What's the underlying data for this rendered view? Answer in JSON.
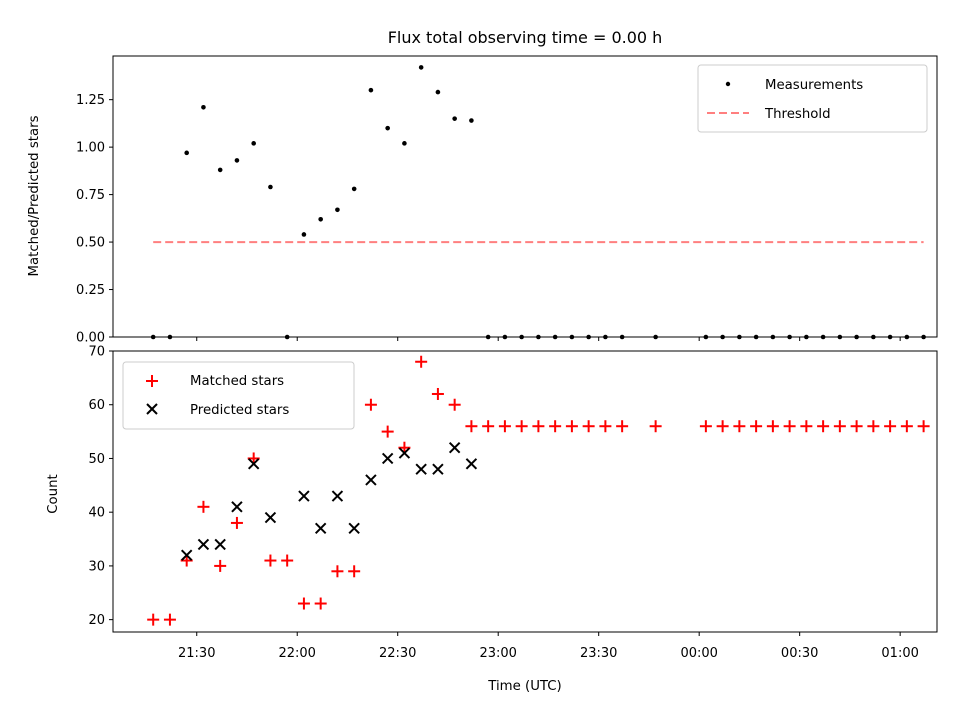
{
  "chart_data": [
    {
      "type": "scatter",
      "title": "Flux total observing time = 0.00 h",
      "xlabel": "",
      "ylabel": "Matched/Predicted stars",
      "ylim": [
        0,
        1.48
      ],
      "yticks": [
        "0.00",
        "0.25",
        "0.50",
        "0.75",
        "1.00",
        "1.25"
      ],
      "x_format": "HH:MM",
      "legend": {
        "position": "top-right",
        "entries": [
          "Measurements",
          "Threshold"
        ]
      },
      "grid": false,
      "series": [
        {
          "name": "Measurements",
          "marker": "dot",
          "color": "#000000",
          "points": [
            [
              "21:17",
              0.0
            ],
            [
              "21:22",
              0.0
            ],
            [
              "21:27",
              0.97
            ],
            [
              "21:32",
              1.21
            ],
            [
              "21:37",
              0.88
            ],
            [
              "21:42",
              0.93
            ],
            [
              "21:47",
              1.02
            ],
            [
              "21:52",
              0.79
            ],
            [
              "21:57",
              0.0
            ],
            [
              "22:02",
              0.54
            ],
            [
              "22:07",
              0.62
            ],
            [
              "22:12",
              0.67
            ],
            [
              "22:17",
              0.78
            ],
            [
              "22:22",
              1.3
            ],
            [
              "22:27",
              1.1
            ],
            [
              "22:32",
              1.02
            ],
            [
              "22:37",
              1.42
            ],
            [
              "22:42",
              1.29
            ],
            [
              "22:47",
              1.15
            ],
            [
              "22:52",
              1.14
            ],
            [
              "22:57",
              0.0
            ],
            [
              "23:02",
              0.0
            ],
            [
              "23:07",
              0.0
            ],
            [
              "23:12",
              0.0
            ],
            [
              "23:17",
              0.0
            ],
            [
              "23:22",
              0.0
            ],
            [
              "23:27",
              0.0
            ],
            [
              "23:32",
              0.0
            ],
            [
              "23:37",
              0.0
            ],
            [
              "23:47",
              0.0
            ],
            [
              "00:02",
              0.0
            ],
            [
              "00:07",
              0.0
            ],
            [
              "00:12",
              0.0
            ],
            [
              "00:17",
              0.0
            ],
            [
              "00:22",
              0.0
            ],
            [
              "00:27",
              0.0
            ],
            [
              "00:32",
              0.0
            ],
            [
              "00:37",
              0.0
            ],
            [
              "00:42",
              0.0
            ],
            [
              "00:47",
              0.0
            ],
            [
              "00:52",
              0.0
            ],
            [
              "00:57",
              0.0
            ],
            [
              "01:02",
              0.0
            ],
            [
              "01:07",
              0.0
            ]
          ]
        },
        {
          "name": "Threshold",
          "marker": "dashed-line",
          "color": "#ff7f7f",
          "points": [
            [
              "21:17",
              0.5
            ],
            [
              "01:07",
              0.5
            ]
          ]
        }
      ]
    },
    {
      "type": "scatter",
      "title": "",
      "xlabel": "Time (UTC)",
      "ylabel": "Count",
      "ylim": [
        17.7,
        70
      ],
      "yticks": [
        "20",
        "30",
        "40",
        "50",
        "60",
        "70"
      ],
      "xticks": [
        "21:30",
        "22:00",
        "22:30",
        "23:00",
        "23:30",
        "00:00",
        "00:30",
        "01:00"
      ],
      "x_format": "HH:MM",
      "legend": {
        "position": "top-left",
        "entries": [
          "Matched stars",
          "Predicted stars"
        ]
      },
      "grid": false,
      "series": [
        {
          "name": "Matched stars",
          "marker": "plus",
          "color": "#ff0000",
          "points": [
            [
              "21:17",
              20
            ],
            [
              "21:22",
              20
            ],
            [
              "21:27",
              31
            ],
            [
              "21:32",
              41
            ],
            [
              "21:37",
              30
            ],
            [
              "21:42",
              38
            ],
            [
              "21:47",
              50
            ],
            [
              "21:52",
              31
            ],
            [
              "21:57",
              31
            ],
            [
              "22:02",
              23
            ],
            [
              "22:07",
              23
            ],
            [
              "22:12",
              29
            ],
            [
              "22:17",
              29
            ],
            [
              "22:22",
              60
            ],
            [
              "22:27",
              55
            ],
            [
              "22:32",
              52
            ],
            [
              "22:37",
              68
            ],
            [
              "22:42",
              62
            ],
            [
              "22:47",
              60
            ],
            [
              "22:52",
              56
            ],
            [
              "22:57",
              56
            ],
            [
              "23:02",
              56
            ],
            [
              "23:07",
              56
            ],
            [
              "23:12",
              56
            ],
            [
              "23:17",
              56
            ],
            [
              "23:22",
              56
            ],
            [
              "23:27",
              56
            ],
            [
              "23:32",
              56
            ],
            [
              "23:37",
              56
            ],
            [
              "23:47",
              56
            ],
            [
              "00:02",
              56
            ],
            [
              "00:07",
              56
            ],
            [
              "00:12",
              56
            ],
            [
              "00:17",
              56
            ],
            [
              "00:22",
              56
            ],
            [
              "00:27",
              56
            ],
            [
              "00:32",
              56
            ],
            [
              "00:37",
              56
            ],
            [
              "00:42",
              56
            ],
            [
              "00:47",
              56
            ],
            [
              "00:52",
              56
            ],
            [
              "00:57",
              56
            ],
            [
              "01:02",
              56
            ],
            [
              "01:07",
              56
            ]
          ]
        },
        {
          "name": "Predicted stars",
          "marker": "x",
          "color": "#000000",
          "points": [
            [
              "21:27",
              32
            ],
            [
              "21:32",
              34
            ],
            [
              "21:37",
              34
            ],
            [
              "21:42",
              41
            ],
            [
              "21:47",
              49
            ],
            [
              "21:52",
              39
            ],
            [
              "22:02",
              43
            ],
            [
              "22:07",
              37
            ],
            [
              "22:12",
              43
            ],
            [
              "22:17",
              37
            ],
            [
              "22:22",
              46
            ],
            [
              "22:27",
              50
            ],
            [
              "22:32",
              51
            ],
            [
              "22:37",
              48
            ],
            [
              "22:42",
              48
            ],
            [
              "22:47",
              52
            ],
            [
              "22:52",
              49
            ]
          ]
        }
      ]
    }
  ]
}
